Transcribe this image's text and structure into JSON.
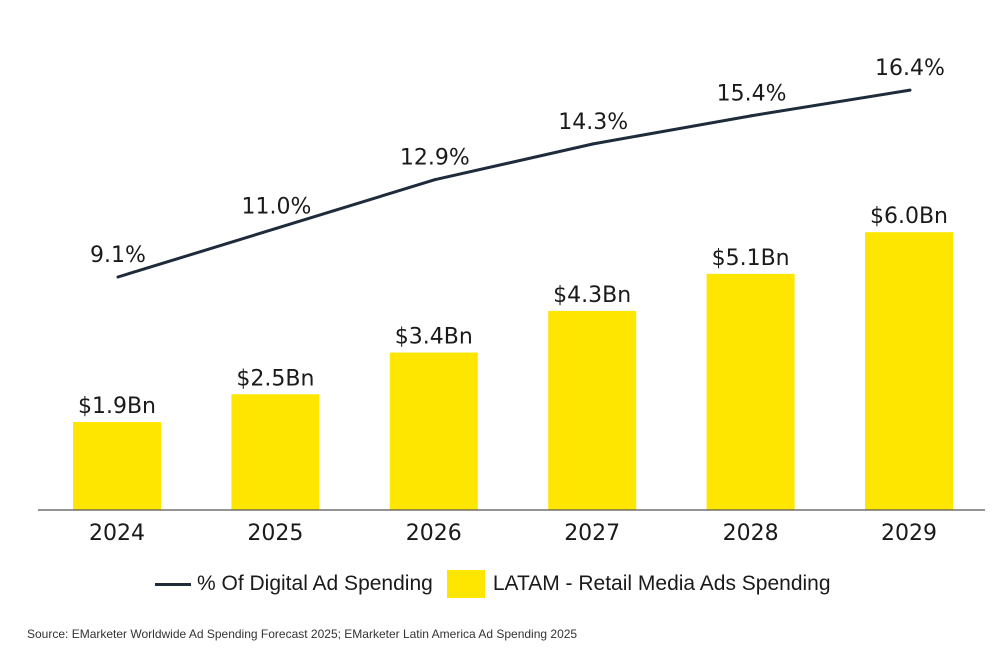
{
  "chart_data": {
    "type": "bar+line",
    "categories": [
      "2024",
      "2025",
      "2026",
      "2027",
      "2028",
      "2029"
    ],
    "series": [
      {
        "name": "LATAM - Retail Media Ads Spending",
        "type": "bar",
        "values": [
          1.9,
          2.5,
          3.4,
          4.3,
          5.1,
          6.0
        ],
        "labels": [
          "$1.9Bn",
          "$2.5Bn",
          "$3.4Bn",
          "$4.3Bn",
          "$5.1Bn",
          "$6.0Bn"
        ],
        "color": "#FFE600"
      },
      {
        "name": "% Of Digital Ad Spending",
        "type": "line",
        "values": [
          9.1,
          11.0,
          12.9,
          14.3,
          15.4,
          16.4
        ],
        "labels": [
          "9.1%",
          "11.0%",
          "12.9%",
          "14.3%",
          "15.4%",
          "16.4%"
        ],
        "color": "#1E2B3A"
      }
    ],
    "legend_position": "bottom",
    "grid": false
  },
  "legend": {
    "line_label": "% Of Digital Ad Spending",
    "bar_label": "LATAM - Retail Media Ads Spending"
  },
  "source": "Source: EMarketer Worldwide Ad Spending Forecast 2025; EMarketer Latin America Ad Spending 2025"
}
